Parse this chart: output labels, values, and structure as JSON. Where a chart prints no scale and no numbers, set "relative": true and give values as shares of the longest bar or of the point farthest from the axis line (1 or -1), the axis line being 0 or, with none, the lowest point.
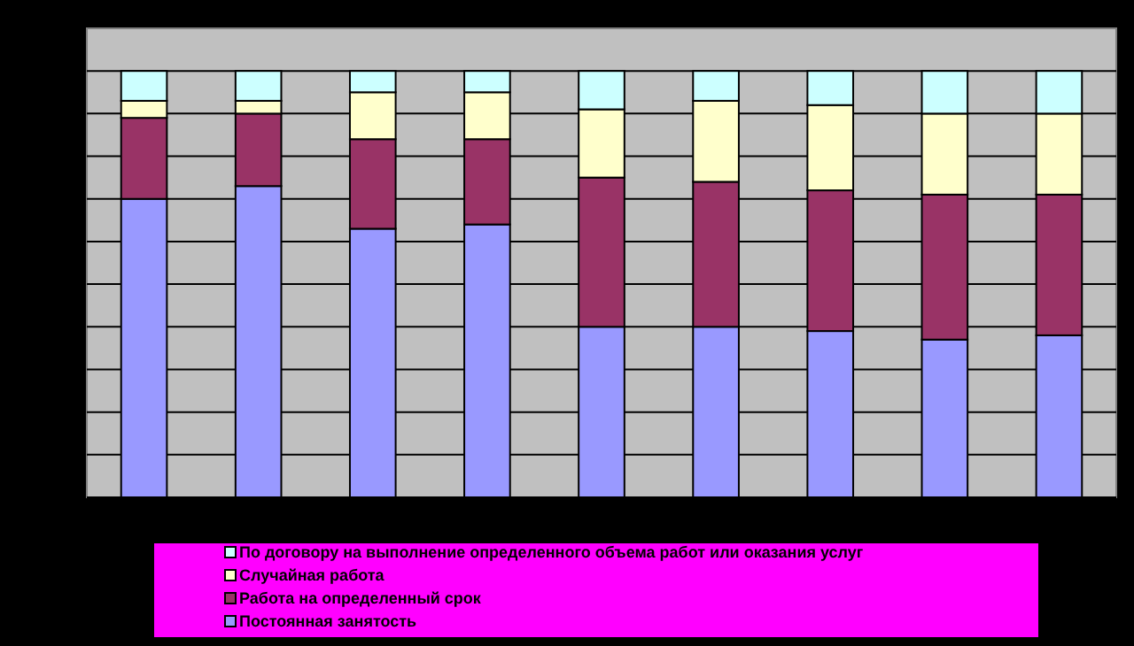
{
  "chart_data": {
    "type": "bar",
    "stacked": true,
    "relative": true,
    "grid": "y",
    "legend": "bottom",
    "categories": [
      null,
      null,
      null,
      null,
      null,
      null,
      null,
      null,
      null
    ],
    "series": [
      {
        "name": "Постоянная занятость",
        "color": "#9999ff",
        "values": [
          0.7,
          0.73,
          0.63,
          0.64,
          0.4,
          0.4,
          0.39,
          0.37,
          0.38
        ]
      },
      {
        "name": "Работа на определенный срок",
        "color": "#993366",
        "values": [
          0.19,
          0.17,
          0.21,
          0.2,
          0.35,
          0.34,
          0.33,
          0.34,
          0.33
        ]
      },
      {
        "name": "Случайная  работа",
        "color": "#ffffcc",
        "values": [
          0.04,
          0.03,
          0.11,
          0.11,
          0.16,
          0.19,
          0.2,
          0.19,
          0.19
        ]
      },
      {
        "name": "По договору на выполнение определенного объема работ или оказания услуг",
        "color": "#ccffff",
        "values": [
          0.07,
          0.07,
          0.05,
          0.05,
          0.09,
          0.07,
          0.08,
          0.1,
          0.1
        ]
      }
    ]
  }
}
